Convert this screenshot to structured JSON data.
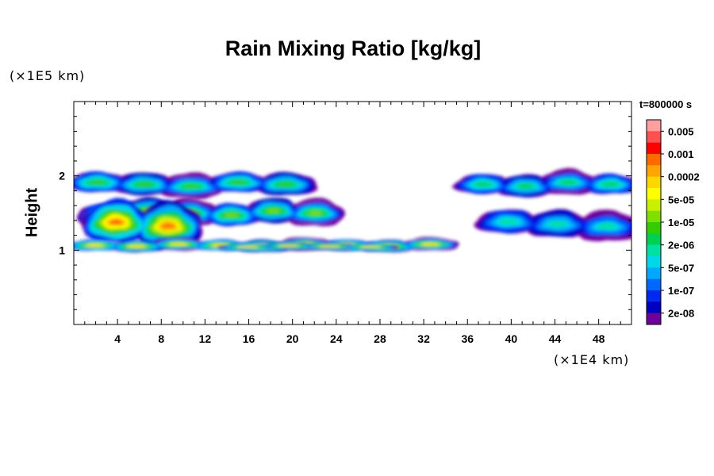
{
  "chart_data": {
    "type": "heatmap",
    "title": "Rain Mixing Ratio [kg/kg]",
    "xlabel": "",
    "ylabel": "Height",
    "x_unit": "(×1E4 km)",
    "y_unit": "(×1E5 km)",
    "time_label": "t=800000 s",
    "xlim": [
      0,
      51
    ],
    "ylim": [
      0,
      3
    ],
    "x_ticks": [
      4,
      8,
      12,
      16,
      20,
      24,
      28,
      32,
      36,
      40,
      44,
      48
    ],
    "y_ticks": [
      1,
      2
    ],
    "colorbar": {
      "labels": [
        "0.005",
        "0.001",
        "0.0002",
        "5e-05",
        "1e-05",
        "2e-06",
        "5e-07",
        "1e-07",
        "2e-08"
      ],
      "colors": [
        "#ff9f9f",
        "#ff5050",
        "#ff0000",
        "#ff6a00",
        "#ffa500",
        "#ffd700",
        "#ffff00",
        "#c8f000",
        "#7fe000",
        "#33cc00",
        "#00d050",
        "#00e0a0",
        "#00d8e8",
        "#00a8ff",
        "#0068ff",
        "#0028f0",
        "#0000c0",
        "#70009c"
      ]
    },
    "regions": [
      {
        "name": "upper-band-west",
        "x": [
          0,
          21.5
        ],
        "y": [
          1.72,
          2.05
        ],
        "level": 9
      },
      {
        "name": "upper-band-east",
        "x": [
          35.5,
          51
        ],
        "y": [
          1.72,
          2.05
        ],
        "level": 10
      },
      {
        "name": "mid-layer-west",
        "x": [
          1,
          24
        ],
        "y": [
          1.32,
          1.68
        ],
        "level": 8
      },
      {
        "name": "convective-core",
        "x": [
          1.5,
          11
        ],
        "y": [
          1.0,
          1.65
        ],
        "level": 3
      },
      {
        "name": "lower-band",
        "x": [
          0,
          34.5
        ],
        "y": [
          0.98,
          1.15
        ],
        "level": 5
      },
      {
        "name": "lower-band-core",
        "x": [
          14,
          29
        ],
        "y": [
          1.0,
          1.1
        ],
        "level": 4
      },
      {
        "name": "mid-layer-east",
        "x": [
          37.5,
          51
        ],
        "y": [
          1.15,
          1.55
        ],
        "level": 11
      }
    ]
  }
}
